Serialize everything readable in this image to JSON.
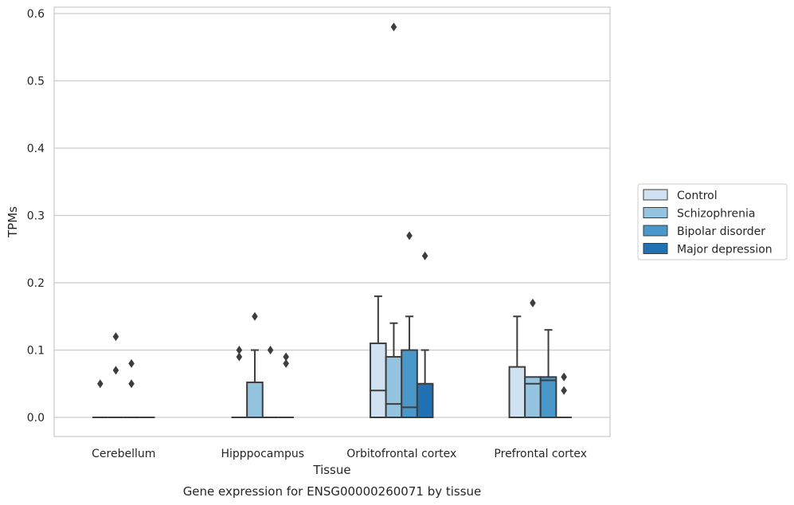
{
  "chart_data": {
    "type": "box",
    "caption": "Gene expression for ENSG00000260071 by tissue",
    "xlabel": "Tissue",
    "ylabel": "TPMs",
    "ylim": [
      -0.028,
      0.612
    ],
    "yticks": [
      0.0,
      0.1,
      0.2,
      0.3,
      0.4,
      0.5,
      0.6
    ],
    "ytick_labels": [
      "0.0",
      "0.1",
      "0.2",
      "0.3",
      "0.4",
      "0.5",
      "0.6"
    ],
    "grid": "horizontal",
    "legend_position": "right",
    "categories": [
      "Cerebellum",
      "Hipppocampus",
      "Orbitofrontal cortex",
      "Prefrontal cortex"
    ],
    "series": [
      {
        "name": "Control",
        "color": "#d0e1f2",
        "boxes": [
          {
            "q1": 0,
            "median": 0,
            "q3": 0,
            "whisker_low": 0,
            "whisker_high": 0,
            "outliers": [
              0.05
            ]
          },
          {
            "q1": 0,
            "median": 0,
            "q3": 0,
            "whisker_low": 0,
            "whisker_high": 0,
            "outliers": [
              0.09,
              0.1
            ]
          },
          {
            "q1": 0,
            "median": 0.04,
            "q3": 0.11,
            "whisker_low": 0,
            "whisker_high": 0.18,
            "outliers": []
          },
          {
            "q1": 0,
            "median": 0,
            "q3": 0.075,
            "whisker_low": 0,
            "whisker_high": 0.15,
            "outliers": []
          }
        ]
      },
      {
        "name": "Schizophrenia",
        "color": "#94c4df",
        "boxes": [
          {
            "q1": 0,
            "median": 0,
            "q3": 0,
            "whisker_low": 0,
            "whisker_high": 0,
            "outliers": [
              0.07,
              0.12
            ]
          },
          {
            "q1": 0,
            "median": 0,
            "q3": 0.052,
            "whisker_low": 0,
            "whisker_high": 0.1,
            "outliers": [
              0.15
            ]
          },
          {
            "q1": 0,
            "median": 0.02,
            "q3": 0.09,
            "whisker_low": 0,
            "whisker_high": 0.14,
            "outliers": [
              0.58
            ]
          },
          {
            "q1": 0,
            "median": 0.05,
            "q3": 0.06,
            "whisker_low": 0,
            "whisker_high": 0.06,
            "outliers": [
              0.17
            ]
          }
        ]
      },
      {
        "name": "Bipolar disorder",
        "color": "#4a98c9",
        "boxes": [
          {
            "q1": 0,
            "median": 0,
            "q3": 0,
            "whisker_low": 0,
            "whisker_high": 0,
            "outliers": [
              0.05,
              0.08
            ]
          },
          {
            "q1": 0,
            "median": 0,
            "q3": 0,
            "whisker_low": 0,
            "whisker_high": 0,
            "outliers": [
              0.1
            ]
          },
          {
            "q1": 0,
            "median": 0.015,
            "q3": 0.1,
            "whisker_low": 0,
            "whisker_high": 0.15,
            "outliers": [
              0.27
            ]
          },
          {
            "q1": 0,
            "median": 0.055,
            "q3": 0.06,
            "whisker_low": 0,
            "whisker_high": 0.13,
            "outliers": []
          }
        ]
      },
      {
        "name": "Major depression",
        "color": "#2171b5",
        "boxes": [
          {
            "q1": 0,
            "median": 0,
            "q3": 0,
            "whisker_low": 0,
            "whisker_high": 0,
            "outliers": []
          },
          {
            "q1": 0,
            "median": 0,
            "q3": 0,
            "whisker_low": 0,
            "whisker_high": 0,
            "outliers": [
              0.08,
              0.09
            ]
          },
          {
            "q1": 0,
            "median": 0,
            "q3": 0.05,
            "whisker_low": 0,
            "whisker_high": 0.1,
            "outliers": [
              0.24
            ]
          },
          {
            "q1": 0,
            "median": 0,
            "q3": 0,
            "whisker_low": 0,
            "whisker_high": 0,
            "outliers": [
              0.04,
              0.06
            ]
          }
        ]
      }
    ]
  }
}
